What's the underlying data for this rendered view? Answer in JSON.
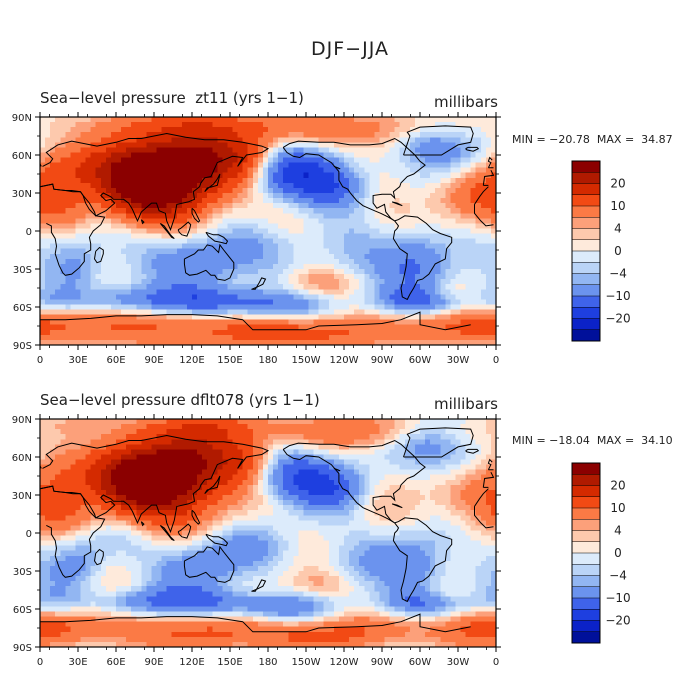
{
  "title": "DJF−JJA",
  "units": "millibars",
  "x_ticks": [
    "0",
    "30E",
    "60E",
    "90E",
    "120E",
    "150E",
    "180",
    "150W",
    "120W",
    "90W",
    "60W",
    "30W",
    "0"
  ],
  "y_ticks": [
    "90N",
    "60N",
    "30N",
    "0",
    "30S",
    "60S",
    "90S"
  ],
  "colorbar": {
    "labels": [
      "20",
      "10",
      "4",
      "0",
      "−4",
      "−10",
      "−20"
    ],
    "colors": [
      "#8b0000",
      "#b01a00",
      "#d42a00",
      "#f24a14",
      "#fb7a45",
      "#fca07a",
      "#fdc9ad",
      "#feeadb",
      "#dcebfb",
      "#bad4f7",
      "#92b6f2",
      "#6b93ee",
      "#3f63ea",
      "#1e3fe0",
      "#0b22c8",
      "#00109a"
    ]
  },
  "panels": [
    {
      "id": "top",
      "title": "Sea−level pressure  zt11 (yrs 1−1)",
      "min_label": "MIN = −20.78",
      "max_label": "MAX =  34.87",
      "chart_data": {
        "type": "heatmap",
        "variable": "Sea-level pressure",
        "case": "zt11",
        "min": -20.78,
        "max": 34.87,
        "units": "millibars"
      }
    },
    {
      "id": "bottom",
      "title": "Sea−level pressure dflt078 (yrs 1−1)",
      "min_label": "MIN = −18.04",
      "max_label": "MAX =  34.10",
      "chart_data": {
        "type": "heatmap",
        "variable": "Sea-level pressure",
        "case": "dflt078",
        "min": -18.04,
        "max": 34.1,
        "units": "millibars"
      }
    }
  ]
}
